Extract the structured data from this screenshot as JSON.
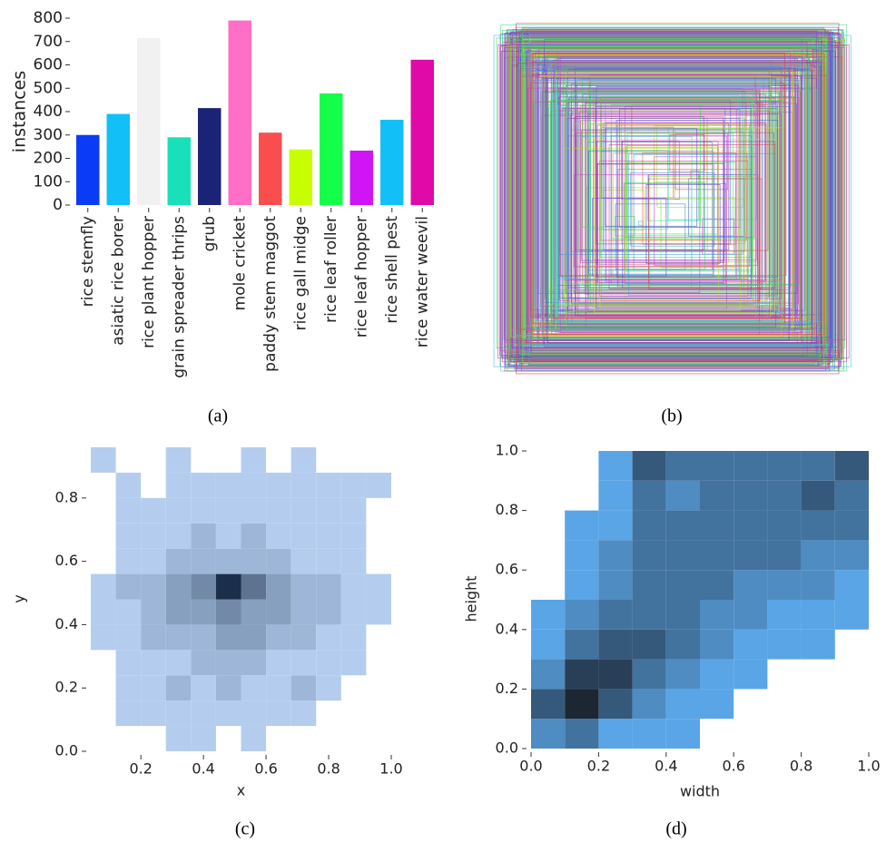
{
  "chart_data": [
    {
      "type": "bar",
      "caption": "(a)",
      "y_label": "instances",
      "categories": [
        "rice stemfly",
        "asiatic rice borer",
        "rice plant hopper",
        "grain spreader thrips",
        "grub",
        "mole cricket",
        "paddy stem maggot",
        "rice gall midge",
        "rice leaf roller",
        "rice leaf hopper",
        "rice shell pest",
        "rice water weevil"
      ],
      "values": [
        300,
        390,
        715,
        290,
        415,
        790,
        310,
        238,
        478,
        233,
        365,
        622
      ],
      "colors": [
        "#0a3cf5",
        "#12c0f7",
        "#f1f1f1",
        "#19e0b8",
        "#1b2376",
        "#ff6ec7",
        "#fa4e4e",
        "#c8ff00",
        "#14ff4a",
        "#cf14f5",
        "#12c0f7",
        "#e00aa8"
      ],
      "ylim": [
        0,
        800
      ],
      "yticks": [
        0,
        100,
        200,
        300,
        400,
        500,
        600,
        700,
        800
      ]
    },
    {
      "type": "boxes",
      "caption": "(b)"
    },
    {
      "type": "hist2d",
      "caption": "(c)",
      "x_label": "x",
      "y_label": "y",
      "xlim": [
        0.04,
        1.0
      ],
      "ylim": [
        0,
        0.96
      ],
      "xticks": [
        0.2,
        0.4,
        0.6,
        0.8,
        {
          "value": 1,
          "label": "1.0"
        }
      ],
      "yticks": [
        {
          "value": 0,
          "label": "0.0"
        },
        0.2,
        0.4,
        0.6,
        0.8
      ],
      "xbins": [
        0.04,
        0.12,
        0.2,
        0.28,
        0.36,
        0.44,
        0.52,
        0.6,
        0.68,
        0.76,
        0.84,
        0.92,
        1.0
      ],
      "ybins": [
        0,
        0.08,
        0.16,
        0.24,
        0.32,
        0.4,
        0.48,
        0.56,
        0.64,
        0.72,
        0.8,
        0.88,
        0.96
      ],
      "cmap": [
        "#b4cdef",
        "#1b2f4a"
      ],
      "values": [
        [
          0,
          0,
          0,
          1,
          1,
          0,
          1,
          0,
          0,
          0,
          0,
          0
        ],
        [
          0,
          1,
          1,
          1,
          1,
          1,
          1,
          1,
          1,
          0,
          0,
          0
        ],
        [
          0,
          1,
          1,
          2,
          1,
          2,
          1,
          1,
          2,
          1,
          0,
          0
        ],
        [
          0,
          1,
          1,
          1,
          2,
          2,
          2,
          1,
          1,
          1,
          1,
          0
        ],
        [
          1,
          1,
          2,
          2,
          2,
          3,
          3,
          2,
          2,
          1,
          1,
          0
        ],
        [
          1,
          1,
          2,
          3,
          3,
          4,
          3,
          3,
          2,
          2,
          1,
          1
        ],
        [
          1,
          2,
          2,
          3,
          4,
          8,
          5,
          3,
          2,
          2,
          1,
          1
        ],
        [
          0,
          1,
          1,
          2,
          2,
          2,
          2,
          2,
          1,
          1,
          1,
          0
        ],
        [
          0,
          1,
          1,
          1,
          2,
          1,
          2,
          1,
          1,
          1,
          1,
          0
        ],
        [
          0,
          1,
          1,
          1,
          1,
          1,
          1,
          1,
          1,
          1,
          1,
          0
        ],
        [
          0,
          1,
          0,
          1,
          1,
          1,
          1,
          1,
          1,
          1,
          1,
          1
        ],
        [
          1,
          0,
          0,
          1,
          0,
          0,
          1,
          0,
          1,
          0,
          0,
          0
        ]
      ]
    },
    {
      "type": "hist2d",
      "caption": "(d)",
      "x_label": "width",
      "y_label": "height",
      "xlim": [
        0,
        1
      ],
      "ylim": [
        0,
        1
      ],
      "xticks": [
        {
          "value": 0,
          "label": "0.0"
        },
        0.2,
        0.4,
        0.6,
        0.8,
        {
          "value": 1,
          "label": "1.0"
        }
      ],
      "yticks": [
        {
          "value": 0,
          "label": "0.0"
        },
        0.2,
        0.4,
        0.6,
        0.8,
        {
          "value": 1,
          "label": "1.0"
        }
      ],
      "xbins": [
        0,
        0.1,
        0.2,
        0.3,
        0.4,
        0.5,
        0.6,
        0.7,
        0.8,
        0.9,
        1
      ],
      "ybins": [
        0,
        0.1,
        0.2,
        0.3,
        0.4,
        0.5,
        0.6,
        0.7,
        0.8,
        0.9,
        1
      ],
      "cmap": [
        "#5aa5e6",
        "#1d2633"
      ],
      "values": [
        [
          2,
          3,
          1,
          1,
          1,
          0,
          0,
          0,
          0,
          0
        ],
        [
          4,
          6,
          4,
          2,
          1,
          1,
          0,
          0,
          0,
          0
        ],
        [
          2,
          5,
          5,
          3,
          2,
          1,
          1,
          0,
          0,
          0
        ],
        [
          1,
          3,
          4,
          4,
          3,
          2,
          1,
          1,
          1,
          0
        ],
        [
          1,
          2,
          3,
          3,
          3,
          2,
          2,
          1,
          1,
          1
        ],
        [
          0,
          1,
          2,
          3,
          3,
          3,
          2,
          2,
          2,
          1
        ],
        [
          0,
          1,
          2,
          3,
          3,
          3,
          3,
          3,
          2,
          2
        ],
        [
          0,
          1,
          1,
          3,
          3,
          3,
          3,
          3,
          3,
          3
        ],
        [
          0,
          0,
          1,
          3,
          2,
          3,
          3,
          3,
          4,
          3
        ],
        [
          0,
          0,
          1,
          4,
          3,
          3,
          3,
          3,
          3,
          4
        ]
      ]
    }
  ]
}
